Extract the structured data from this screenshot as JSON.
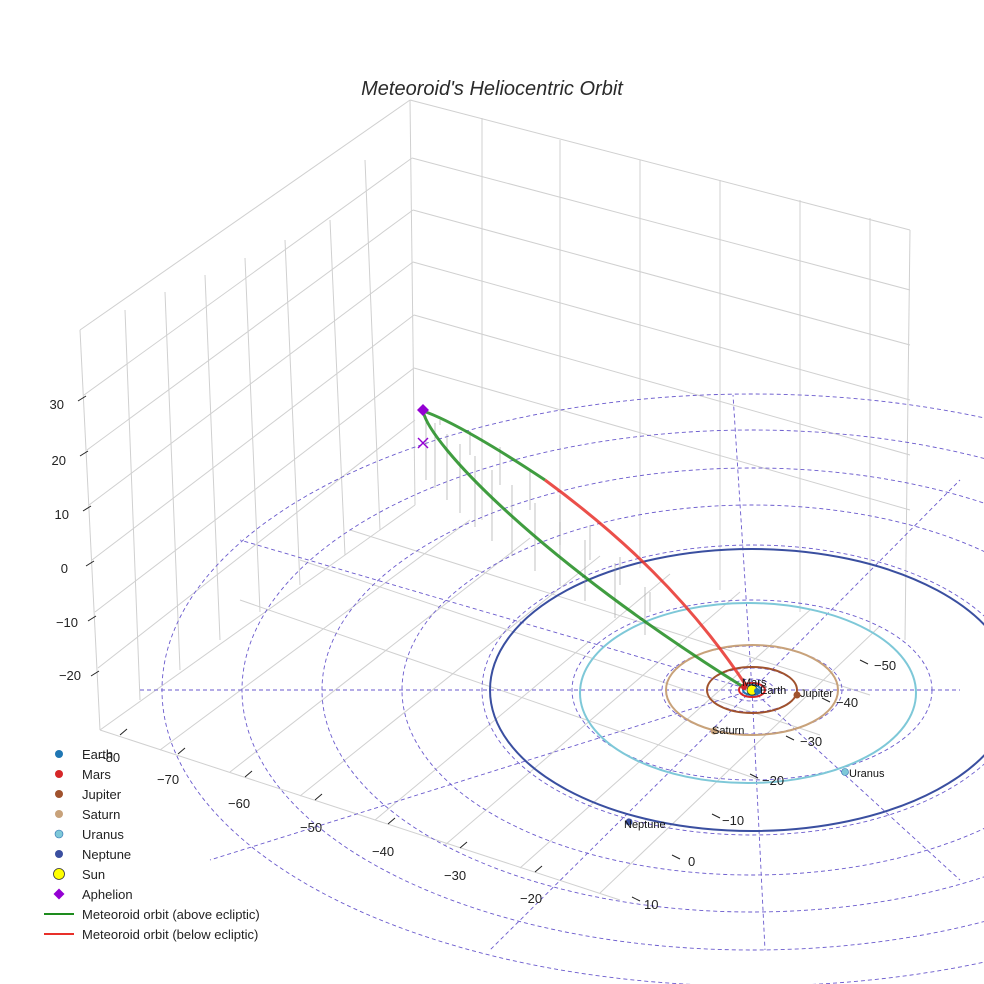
{
  "chart_data": {
    "type": "scatter",
    "title": "Meteoroid's Heliocentric Orbit",
    "z_ticks": [
      "30",
      "20",
      "10",
      "0",
      "−10",
      "−20"
    ],
    "y_ticks": [
      "−50",
      "−40",
      "−30",
      "−20",
      "−10",
      "0",
      "10"
    ],
    "x_ticks": [
      "−80",
      "−70",
      "−60",
      "−50",
      "−40",
      "−30",
      "−20"
    ],
    "colors": {
      "earth": "#1f77b4",
      "mars": "#d62728",
      "jupiter": "#a0522d",
      "saturn": "#c8a27a",
      "uranus": "#7ec8d8",
      "neptune": "#3a4fa0",
      "sun": "#ffff00",
      "aphelion": "#9400d3",
      "above": "#1e8c1e",
      "below": "#e8302a",
      "grid": "#6a5acd"
    },
    "planets": [
      {
        "name": "Mars",
        "color": "#d62728"
      },
      {
        "name": "Earth",
        "color": "#1f77b4"
      },
      {
        "name": "Jupiter",
        "color": "#a0522d"
      },
      {
        "name": "Saturn",
        "color": "#c8a27a"
      },
      {
        "name": "Uranus",
        "color": "#7ec8d8"
      },
      {
        "name": "Neptune",
        "color": "#3a4fa0"
      }
    ],
    "legend": [
      {
        "label": "Earth",
        "marker": "dot",
        "color": "#1f77b4"
      },
      {
        "label": "Mars",
        "marker": "dot",
        "color": "#d62728"
      },
      {
        "label": "Jupiter",
        "marker": "dot",
        "color": "#a0522d"
      },
      {
        "label": "Saturn",
        "marker": "dot",
        "color": "#c8a27a"
      },
      {
        "label": "Uranus",
        "marker": "dot",
        "color": "#7ec8d8"
      },
      {
        "label": "Neptune",
        "marker": "dot",
        "color": "#3a4fa0"
      },
      {
        "label": "Sun",
        "marker": "sun",
        "color": "#ffff00"
      },
      {
        "label": "Aphelion",
        "marker": "diamond",
        "color": "#9400d3"
      },
      {
        "label": "Meteoroid orbit (above ecliptic)",
        "marker": "line",
        "color": "#1e8c1e"
      },
      {
        "label": "Meteoroid orbit (below ecliptic)",
        "marker": "line",
        "color": "#e8302a"
      }
    ]
  }
}
